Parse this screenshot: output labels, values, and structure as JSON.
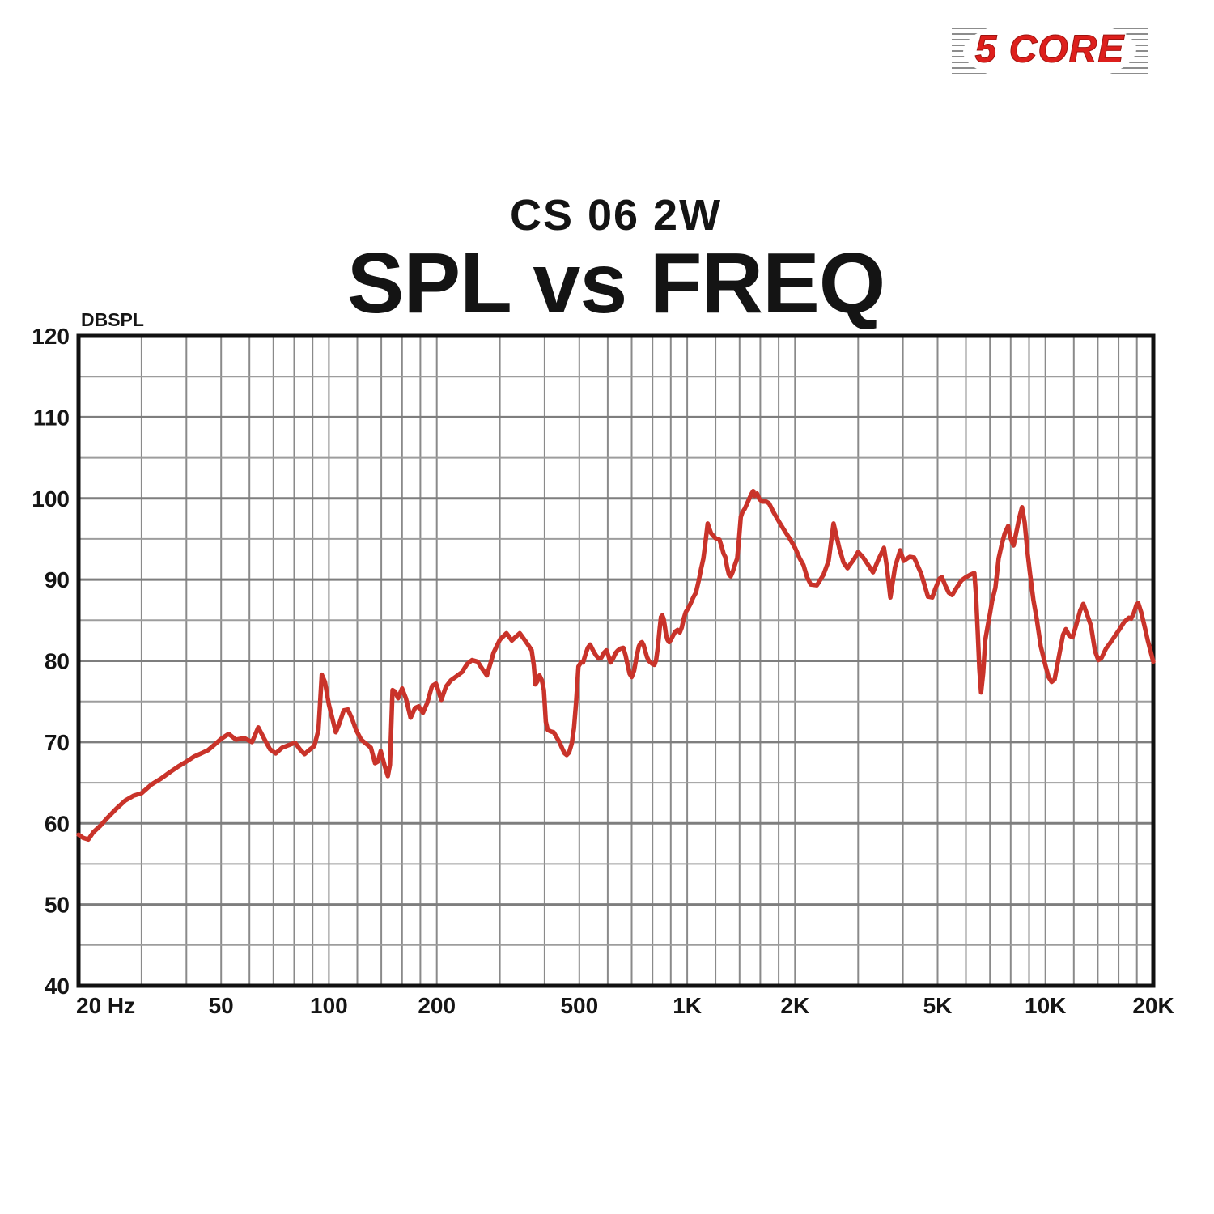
{
  "logo": {
    "text": "5 CORE",
    "color": "#dd1f1c"
  },
  "header": {
    "subtitle": "CS 06 2W",
    "title": "SPL vs FREQ"
  },
  "chart_data": {
    "type": "line",
    "title": "SPL vs FREQ",
    "subtitle": "CS 06 2W",
    "ylabel": "DBSPL",
    "x_scale": "log",
    "xlim": [
      20,
      20000
    ],
    "ylim": [
      40,
      120
    ],
    "grid": true,
    "legend": "none",
    "y_major_ticks": [
      120,
      110,
      100,
      90,
      80,
      70,
      60,
      50,
      40
    ],
    "y_minor_step": 5,
    "x_ticks": [
      {
        "f": 20,
        "label": "20 Hz"
      },
      {
        "f": 50,
        "label": "50"
      },
      {
        "f": 100,
        "label": "100"
      },
      {
        "f": 200,
        "label": "200"
      },
      {
        "f": 500,
        "label": "500"
      },
      {
        "f": 1000,
        "label": "1K"
      },
      {
        "f": 2000,
        "label": "2K"
      },
      {
        "f": 5000,
        "label": "5K"
      },
      {
        "f": 10000,
        "label": "10K"
      },
      {
        "f": 20000,
        "label": "20K"
      }
    ],
    "x_minor_mantissas": [
      1,
      1.5,
      2,
      2.5,
      3,
      3.5,
      4,
      4.5,
      5,
      6,
      7,
      8,
      9
    ],
    "colors": {
      "curve": "#c9332a",
      "grid_vert": "#8a8a8a",
      "grid_major": "#7e7e7e",
      "grid_minor": "#9d9d9d",
      "axis": "#111111"
    },
    "series": [
      {
        "name": "SPL",
        "points": [
          [
            20,
            58.6
          ],
          [
            20.6,
            58.2
          ],
          [
            21.3,
            58.0
          ],
          [
            22,
            58.9
          ],
          [
            23,
            59.7
          ],
          [
            24,
            60.6
          ],
          [
            25.5,
            61.8
          ],
          [
            27,
            62.8
          ],
          [
            28.5,
            63.4
          ],
          [
            30,
            63.7
          ],
          [
            32,
            64.8
          ],
          [
            34,
            65.5
          ],
          [
            36,
            66.3
          ],
          [
            38,
            67.0
          ],
          [
            40,
            67.6
          ],
          [
            42,
            68.2
          ],
          [
            44,
            68.6
          ],
          [
            46,
            69.0
          ],
          [
            48,
            69.7
          ],
          [
            50,
            70.4
          ],
          [
            52.5,
            71.0
          ],
          [
            55,
            70.3
          ],
          [
            58,
            70.5
          ],
          [
            61,
            70.0
          ],
          [
            63.5,
            71.8
          ],
          [
            66,
            70.4
          ],
          [
            68.5,
            69.1
          ],
          [
            71,
            68.6
          ],
          [
            74,
            69.3
          ],
          [
            78,
            69.7
          ],
          [
            80.5,
            69.9
          ],
          [
            83,
            69.1
          ],
          [
            85.5,
            68.5
          ],
          [
            88,
            69.0
          ],
          [
            91,
            69.5
          ],
          [
            93.5,
            71.5
          ],
          [
            95.5,
            78.3
          ],
          [
            97.5,
            77.4
          ],
          [
            100,
            74.6
          ],
          [
            102,
            73.1
          ],
          [
            104.5,
            71.2
          ],
          [
            107,
            72.3
          ],
          [
            110,
            73.9
          ],
          [
            113,
            74.0
          ],
          [
            116,
            72.9
          ],
          [
            119,
            71.5
          ],
          [
            123,
            70.3
          ],
          [
            127,
            69.8
          ],
          [
            131,
            69.3
          ],
          [
            134.5,
            67.4
          ],
          [
            137,
            67.6
          ],
          [
            139.5,
            68.9
          ],
          [
            143,
            67.1
          ],
          [
            146,
            65.8
          ],
          [
            148,
            67.2
          ],
          [
            150.5,
            76.4
          ],
          [
            153,
            76.2
          ],
          [
            156,
            75.4
          ],
          [
            160,
            76.6
          ],
          [
            164,
            75.4
          ],
          [
            169,
            73.0
          ],
          [
            174,
            74.2
          ],
          [
            178,
            74.4
          ],
          [
            183,
            73.6
          ],
          [
            188,
            74.8
          ],
          [
            194,
            76.9
          ],
          [
            199,
            77.2
          ],
          [
            206,
            75.2
          ],
          [
            212,
            76.8
          ],
          [
            219,
            77.6
          ],
          [
            227,
            78.1
          ],
          [
            235,
            78.6
          ],
          [
            243,
            79.6
          ],
          [
            251,
            80.1
          ],
          [
            260,
            79.9
          ],
          [
            268,
            79.0
          ],
          [
            276,
            78.2
          ],
          [
            288,
            81.0
          ],
          [
            300,
            82.6
          ],
          [
            313,
            83.4
          ],
          [
            324,
            82.5
          ],
          [
            333,
            83.0
          ],
          [
            341,
            83.4
          ],
          [
            350,
            82.7
          ],
          [
            358,
            82.1
          ],
          [
            368,
            81.3
          ],
          [
            373,
            79.5
          ],
          [
            377,
            77.1
          ],
          [
            382,
            77.5
          ],
          [
            387,
            78.2
          ],
          [
            393,
            77.6
          ],
          [
            398,
            76.4
          ],
          [
            403,
            72.5
          ],
          [
            408,
            71.5
          ],
          [
            416,
            71.3
          ],
          [
            424,
            71.2
          ],
          [
            432,
            70.6
          ],
          [
            440,
            70.0
          ],
          [
            448,
            69.2
          ],
          [
            455,
            68.6
          ],
          [
            461,
            68.4
          ],
          [
            468,
            68.7
          ],
          [
            476,
            69.8
          ],
          [
            483,
            71.7
          ],
          [
            490,
            75.0
          ],
          [
            497,
            79.3
          ],
          [
            505,
            79.8
          ],
          [
            512,
            79.8
          ],
          [
            520,
            80.8
          ],
          [
            528,
            81.6
          ],
          [
            536,
            82.0
          ],
          [
            546,
            81.3
          ],
          [
            556,
            80.7
          ],
          [
            566,
            80.3
          ],
          [
            576,
            80.4
          ],
          [
            586,
            81.0
          ],
          [
            595,
            81.3
          ],
          [
            603,
            80.6
          ],
          [
            611,
            79.8
          ],
          [
            621,
            80.3
          ],
          [
            632,
            81.0
          ],
          [
            641,
            81.3
          ],
          [
            651,
            81.5
          ],
          [
            663,
            81.6
          ],
          [
            673,
            80.7
          ],
          [
            682,
            79.5
          ],
          [
            691,
            78.4
          ],
          [
            700,
            78.0
          ],
          [
            711,
            78.8
          ],
          [
            722,
            80.5
          ],
          [
            733,
            81.8
          ],
          [
            741,
            82.2
          ],
          [
            748,
            82.3
          ],
          [
            756,
            81.9
          ],
          [
            764,
            81.2
          ],
          [
            772,
            80.5
          ],
          [
            781,
            80.0
          ],
          [
            791,
            79.8
          ],
          [
            800,
            79.6
          ],
          [
            810,
            79.5
          ],
          [
            819,
            80.1
          ],
          [
            829,
            81.8
          ],
          [
            838,
            84.0
          ],
          [
            845,
            85.4
          ],
          [
            852,
            85.6
          ],
          [
            859,
            85.2
          ],
          [
            866,
            84.3
          ],
          [
            873,
            83.2
          ],
          [
            881,
            82.6
          ],
          [
            890,
            82.3
          ],
          [
            901,
            82.6
          ],
          [
            913,
            83.1
          ],
          [
            926,
            83.6
          ],
          [
            940,
            83.8
          ],
          [
            954,
            83.5
          ],
          [
            966,
            84.1
          ],
          [
            978,
            85.2
          ],
          [
            991,
            86.0
          ],
          [
            1004,
            86.4
          ],
          [
            1021,
            87.0
          ],
          [
            1040,
            87.8
          ],
          [
            1058,
            88.4
          ],
          [
            1076,
            89.8
          ],
          [
            1093,
            91.3
          ],
          [
            1110,
            92.6
          ],
          [
            1126,
            94.8
          ],
          [
            1141,
            96.9
          ],
          [
            1153,
            96.3
          ],
          [
            1166,
            95.7
          ],
          [
            1181,
            95.4
          ],
          [
            1200,
            95.1
          ],
          [
            1216,
            95.0
          ],
          [
            1231,
            94.9
          ],
          [
            1249,
            94.0
          ],
          [
            1263,
            93.2
          ],
          [
            1277,
            92.8
          ],
          [
            1293,
            91.5
          ],
          [
            1308,
            90.6
          ],
          [
            1323,
            90.4
          ],
          [
            1341,
            91.0
          ],
          [
            1361,
            91.9
          ],
          [
            1379,
            92.6
          ],
          [
            1396,
            95.1
          ],
          [
            1411,
            97.7
          ],
          [
            1427,
            98.3
          ],
          [
            1447,
            98.7
          ],
          [
            1468,
            99.3
          ],
          [
            1491,
            100.0
          ],
          [
            1514,
            100.6
          ],
          [
            1529,
            100.9
          ],
          [
            1541,
            100.3
          ],
          [
            1552,
            100.5
          ],
          [
            1566,
            100.6
          ],
          [
            1591,
            99.9
          ],
          [
            1621,
            99.6
          ],
          [
            1661,
            99.6
          ],
          [
            1691,
            99.4
          ],
          [
            1741,
            98.3
          ],
          [
            1806,
            97.1
          ],
          [
            1871,
            96.0
          ],
          [
            1941,
            94.9
          ],
          [
            2001,
            93.9
          ],
          [
            2061,
            92.6
          ],
          [
            2111,
            91.8
          ],
          [
            2161,
            90.3
          ],
          [
            2211,
            89.4
          ],
          [
            2301,
            89.3
          ],
          [
            2401,
            90.6
          ],
          [
            2481,
            92.3
          ],
          [
            2561,
            96.9
          ],
          [
            2661,
            93.8
          ],
          [
            2731,
            92.1
          ],
          [
            2801,
            91.4
          ],
          [
            2931,
            92.6
          ],
          [
            3001,
            93.4
          ],
          [
            3101,
            92.7
          ],
          [
            3191,
            91.9
          ],
          [
            3301,
            90.9
          ],
          [
            3421,
            92.5
          ],
          [
            3541,
            93.9
          ],
          [
            3611,
            91.5
          ],
          [
            3691,
            87.8
          ],
          [
            3801,
            91.5
          ],
          [
            3931,
            93.6
          ],
          [
            4021,
            92.3
          ],
          [
            4181,
            92.8
          ],
          [
            4301,
            92.7
          ],
          [
            4501,
            90.7
          ],
          [
            4701,
            87.9
          ],
          [
            4831,
            87.8
          ],
          [
            4921,
            88.8
          ],
          [
            5061,
            90.1
          ],
          [
            5141,
            90.3
          ],
          [
            5251,
            89.3
          ],
          [
            5371,
            88.4
          ],
          [
            5491,
            88.1
          ],
          [
            5651,
            89.0
          ],
          [
            5831,
            89.9
          ],
          [
            6001,
            90.3
          ],
          [
            6171,
            90.6
          ],
          [
            6331,
            90.8
          ],
          [
            6401,
            88.0
          ],
          [
            6471,
            83.5
          ],
          [
            6541,
            79.0
          ],
          [
            6611,
            76.1
          ],
          [
            6701,
            78.5
          ],
          [
            6791,
            82.5
          ],
          [
            6901,
            84.3
          ],
          [
            7001,
            85.8
          ],
          [
            7101,
            87.4
          ],
          [
            7251,
            89.0
          ],
          [
            7401,
            92.6
          ],
          [
            7551,
            94.3
          ],
          [
            7701,
            95.7
          ],
          [
            7871,
            96.6
          ],
          [
            7951,
            95.5
          ],
          [
            8051,
            94.7
          ],
          [
            8151,
            94.2
          ],
          [
            8301,
            95.9
          ],
          [
            8451,
            97.6
          ],
          [
            8601,
            98.9
          ],
          [
            8751,
            97.0
          ],
          [
            8901,
            93.5
          ],
          [
            9051,
            90.8
          ],
          [
            9251,
            87.5
          ],
          [
            9451,
            85.2
          ],
          [
            9701,
            81.8
          ],
          [
            10001,
            79.4
          ],
          [
            10201,
            78.0
          ],
          [
            10401,
            77.4
          ],
          [
            10601,
            77.7
          ],
          [
            10901,
            80.5
          ],
          [
            11201,
            83.2
          ],
          [
            11401,
            83.9
          ],
          [
            11651,
            83.1
          ],
          [
            11901,
            82.9
          ],
          [
            12201,
            84.5
          ],
          [
            12501,
            86.2
          ],
          [
            12751,
            87.0
          ],
          [
            13051,
            85.8
          ],
          [
            13401,
            84.3
          ],
          [
            13751,
            81.2
          ],
          [
            14051,
            80.1
          ],
          [
            14351,
            80.4
          ],
          [
            14751,
            81.5
          ],
          [
            15101,
            82.1
          ],
          [
            15601,
            83.0
          ],
          [
            16101,
            83.9
          ],
          [
            16601,
            84.8
          ],
          [
            17101,
            85.3
          ],
          [
            17351,
            85.2
          ],
          [
            17651,
            85.9
          ],
          [
            17951,
            86.9
          ],
          [
            18151,
            87.1
          ],
          [
            18501,
            86.0
          ],
          [
            18901,
            84.3
          ],
          [
            19301,
            82.5
          ],
          [
            19701,
            81.0
          ],
          [
            20000,
            79.9
          ]
        ]
      }
    ]
  }
}
